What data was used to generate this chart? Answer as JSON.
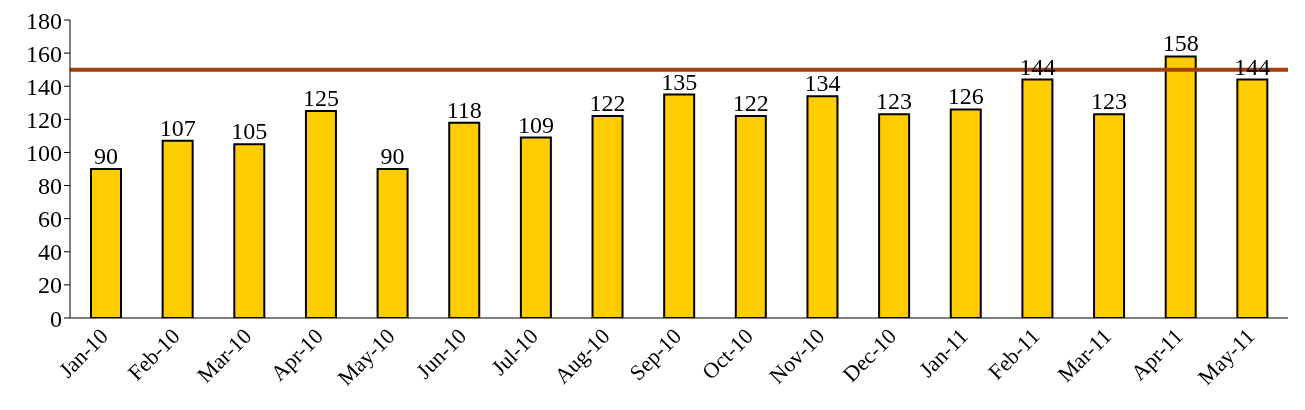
{
  "chart_data": {
    "type": "bar",
    "categories": [
      "Jan-10",
      "Feb-10",
      "Mar-10",
      "Apr-10",
      "May-10",
      "Jun-10",
      "Jul-10",
      "Aug-10",
      "Sep-10",
      "Oct-10",
      "Nov-10",
      "Dec-10",
      "Jan-11",
      "Feb-11",
      "Mar-11",
      "Apr-11",
      "May-11"
    ],
    "values": [
      90,
      107,
      105,
      125,
      90,
      118,
      109,
      122,
      135,
      122,
      134,
      123,
      126,
      144,
      123,
      158,
      144
    ],
    "color": "#ffcc00",
    "ylim": [
      0,
      180
    ],
    "yticks": [
      0,
      20,
      40,
      60,
      80,
      100,
      120,
      140,
      160,
      180
    ],
    "ref_lines": [
      {
        "axis": "y",
        "value": 150,
        "color": "#a5400d"
      }
    ],
    "data_labels": true,
    "grid": false
  }
}
